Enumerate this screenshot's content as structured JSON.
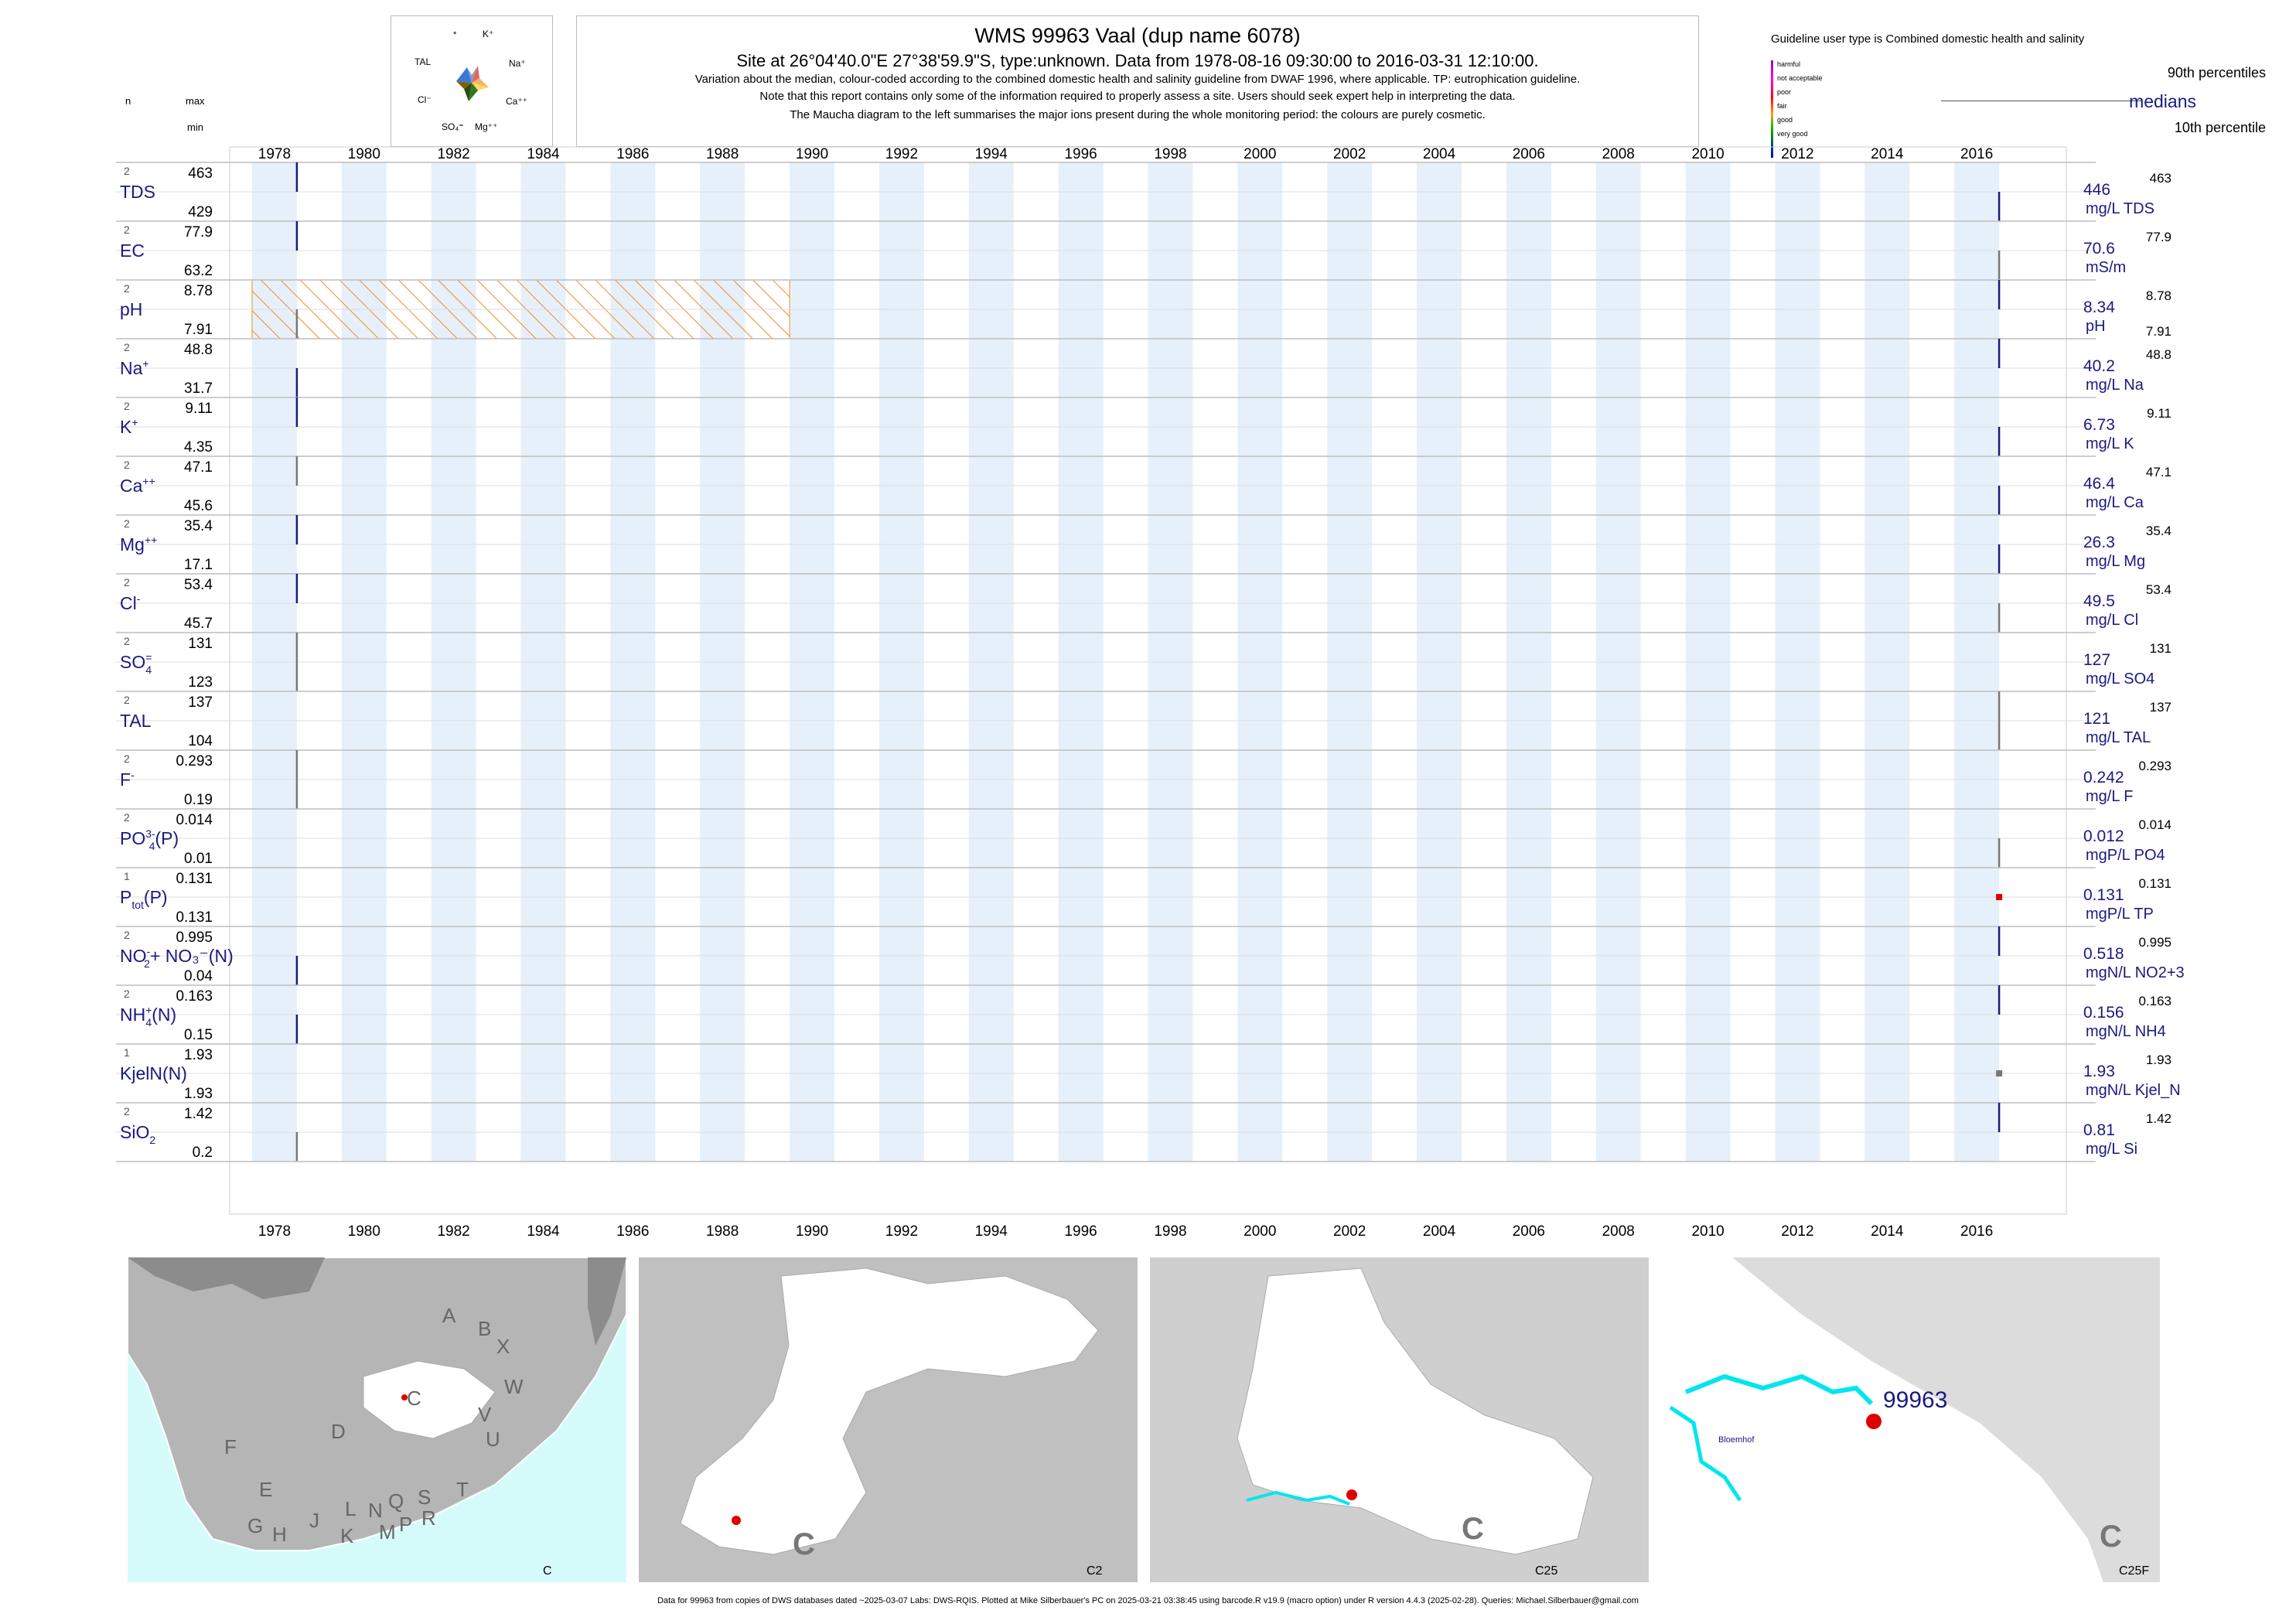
{
  "header": {
    "title": "WMS 99963  Vaal (dup name 6078)",
    "subtitle": "Site at 26°04'40.0\"E 27°38'59.9\"S, type:unknown.  Data from 1978-08-16 09:30:00 to 2016-03-31 12:10:00.",
    "note1": "Variation about the median,  colour-coded according to the combined domestic health and salinity guideline from DWAF 1996, where applicable. TP: eutrophication guideline.",
    "note2": "Note that this report contains only some of the information required to properly assess a site. Users should seek expert help in interpreting the data.",
    "note3": "The Maucha diagram to the left summarises the major ions present during the whole monitoring period: the colours are purely cosmetic."
  },
  "maucha": {
    "labels": [
      "*",
      "K⁺",
      "Na⁺",
      "Ca⁺⁺",
      "Mg⁺⁺",
      "SO₄⁼",
      "Cl⁻",
      "TAL"
    ]
  },
  "legend": {
    "guideline_title": "Guideline user type is Combined domestic health and salinity",
    "classes": [
      {
        "label": "harmful",
        "color": "#8b1a8b"
      },
      {
        "label": "not acceptable",
        "color": "#ff00ff"
      },
      {
        "label": "poor",
        "color": "#ff0000"
      },
      {
        "label": "fair",
        "color": "#ffa500"
      },
      {
        "label": "good",
        "color": "#00aa00"
      },
      {
        "label": "very good",
        "color": "#0000cc"
      }
    ],
    "p90": "90th percentiles",
    "medians": "medians",
    "p10": "10th percentile"
  },
  "left_header": {
    "n": "n",
    "max": "max",
    "min": "min"
  },
  "chart_data": {
    "type": "range-bar",
    "x_ticks": [
      "1978",
      "1980",
      "1982",
      "1984",
      "1986",
      "1988",
      "1990",
      "1992",
      "1994",
      "1996",
      "1998",
      "2000",
      "2002",
      "2004",
      "2006",
      "2008",
      "2010",
      "2012",
      "2014",
      "2016"
    ],
    "xlim": [
      1977,
      2018
    ],
    "pH_hatch": {
      "from": 1977.5,
      "to": 1989.5,
      "color": "#f28c28"
    },
    "colors": {
      "vertical": "#1a1a80",
      "grey": "#777777",
      "red": "#e00000",
      "band": "#e6f0fa"
    },
    "variables": [
      {
        "label": "TDS",
        "sup": "",
        "sub": "",
        "n": "2",
        "max": "463",
        "min": "429",
        "median": "446",
        "unit": "mg/L TDS",
        "rmax": "463",
        "rmin": "",
        "segments": [
          {
            "year": 1978.5,
            "top": 1,
            "bot": 0.5,
            "c": "vertical"
          },
          {
            "year": 2016.5,
            "top": 0.5,
            "bot": 0,
            "c": "vertical"
          }
        ]
      },
      {
        "label": "EC",
        "sup": "",
        "sub": "",
        "n": "2",
        "max": "77.9",
        "min": "63.2",
        "median": "70.6",
        "unit": "mS/m",
        "rmax": "77.9",
        "rmin": "",
        "segments": [
          {
            "year": 1978.5,
            "top": 1,
            "bot": 0.5,
            "c": "vertical"
          },
          {
            "year": 2016.5,
            "top": 0.5,
            "bot": 0,
            "c": "grey"
          }
        ]
      },
      {
        "label": "pH",
        "sup": "",
        "sub": "",
        "n": "2",
        "max": "8.78",
        "min": "7.91",
        "median": "8.34",
        "unit": "pH",
        "rmax": "8.78",
        "rmin": "7.91",
        "segments": [
          {
            "year": 1978.5,
            "top": 0.5,
            "bot": 0,
            "c": "grey"
          },
          {
            "year": 2016.5,
            "top": 1,
            "bot": 0.5,
            "c": "vertical"
          }
        ]
      },
      {
        "label": "Na",
        "sup": "+",
        "sub": "",
        "n": "2",
        "max": "48.8",
        "min": "31.7",
        "median": "40.2",
        "unit": "mg/L Na",
        "rmax": "48.8",
        "rmin": "",
        "segments": [
          {
            "year": 1978.5,
            "top": 0.5,
            "bot": 0,
            "c": "vertical"
          },
          {
            "year": 2016.5,
            "top": 1,
            "bot": 0.5,
            "c": "vertical"
          }
        ]
      },
      {
        "label": "K",
        "sup": "+",
        "sub": "",
        "n": "2",
        "max": "9.11",
        "min": "4.35",
        "median": "6.73",
        "unit": "mg/L K",
        "rmax": "9.11",
        "rmin": "",
        "segments": [
          {
            "year": 1978.5,
            "top": 1,
            "bot": 0.5,
            "c": "vertical"
          },
          {
            "year": 2016.5,
            "top": 0.5,
            "bot": 0,
            "c": "vertical"
          }
        ]
      },
      {
        "label": "Ca",
        "sup": "++",
        "sub": "",
        "n": "2",
        "max": "47.1",
        "min": "45.6",
        "median": "46.4",
        "unit": "mg/L Ca",
        "rmax": "47.1",
        "rmin": "",
        "segments": [
          {
            "year": 1978.5,
            "top": 1,
            "bot": 0.5,
            "c": "grey"
          },
          {
            "year": 2016.5,
            "top": 0.5,
            "bot": 0,
            "c": "vertical"
          }
        ]
      },
      {
        "label": "Mg",
        "sup": "++",
        "sub": "",
        "n": "2",
        "max": "35.4",
        "min": "17.1",
        "median": "26.3",
        "unit": "mg/L Mg",
        "rmax": "35.4",
        "rmin": "",
        "segments": [
          {
            "year": 1978.5,
            "top": 1,
            "bot": 0.5,
            "c": "vertical"
          },
          {
            "year": 2016.5,
            "top": 0.5,
            "bot": 0,
            "c": "vertical"
          }
        ]
      },
      {
        "label": "Cl",
        "sup": "-",
        "sub": "",
        "n": "2",
        "max": "53.4",
        "min": "45.7",
        "median": "49.5",
        "unit": "mg/L Cl",
        "rmax": "53.4",
        "rmin": "",
        "segments": [
          {
            "year": 1978.5,
            "top": 1,
            "bot": 0.5,
            "c": "vertical"
          },
          {
            "year": 2016.5,
            "top": 0.5,
            "bot": 0,
            "c": "grey"
          }
        ]
      },
      {
        "label": "SO",
        "sup": "=",
        "sub": "4",
        "n": "2",
        "max": "131",
        "min": "123",
        "median": "127",
        "unit": "mg/L SO4",
        "rmax": "131",
        "rmin": "",
        "segments": [
          {
            "year": 1978.5,
            "top": 1,
            "bot": 0,
            "c": "grey"
          }
        ]
      },
      {
        "label": "TAL",
        "sup": "",
        "sub": "",
        "n": "2",
        "max": "137",
        "min": "104",
        "median": "121",
        "unit": "mg/L TAL",
        "rmax": "137",
        "rmin": "",
        "segments": [
          {
            "year": 2016.5,
            "top": 1,
            "bot": 0,
            "c": "grey"
          }
        ]
      },
      {
        "label": "F",
        "sup": "-",
        "sub": "",
        "n": "2",
        "max": "0.293",
        "min": "0.19",
        "median": "0.242",
        "unit": "mg/L F",
        "rmax": "0.293",
        "rmin": "",
        "segments": [
          {
            "year": 1978.5,
            "top": 1,
            "bot": 0,
            "c": "grey"
          }
        ]
      },
      {
        "label": "PO",
        "sup": "3-",
        "sub": "4",
        "suffix": "(P)",
        "n": "2",
        "max": "0.014",
        "min": "0.01",
        "median": "0.012",
        "unit": "mgP/L PO4",
        "rmax": "0.014",
        "rmin": "",
        "segments": [
          {
            "year": 2016.5,
            "top": 0.5,
            "bot": 0,
            "c": "grey"
          }
        ]
      },
      {
        "label": "P",
        "sup": "",
        "sub": "tot",
        "suffix": "(P)",
        "n": "1",
        "max": "0.131",
        "min": "0.131",
        "median": "0.131",
        "unit": "mgP/L TP",
        "rmax": "0.131",
        "rmin": "",
        "segments": [],
        "points": [
          {
            "year": 2016.5,
            "pos": 0.5,
            "c": "red"
          }
        ]
      },
      {
        "label": "NO",
        "sup": "-",
        "sub": "2",
        "suffix": "+ NO₃⁻(N)",
        "n": "2",
        "max": "0.995",
        "min": "0.04",
        "median": "0.518",
        "unit": "mgN/L NO2+3",
        "rmax": "0.995",
        "rmin": "",
        "segments": [
          {
            "year": 1978.5,
            "top": 0.5,
            "bot": 0,
            "c": "vertical"
          },
          {
            "year": 2016.5,
            "top": 1,
            "bot": 0.5,
            "c": "vertical"
          }
        ]
      },
      {
        "label": "NH",
        "sup": "+",
        "sub": "4",
        "suffix": "(N)",
        "n": "2",
        "max": "0.163",
        "min": "0.15",
        "median": "0.156",
        "unit": "mgN/L NH4",
        "rmax": "0.163",
        "rmin": "",
        "segments": [
          {
            "year": 1978.5,
            "top": 0.5,
            "bot": 0,
            "c": "vertical"
          },
          {
            "year": 2016.5,
            "top": 1,
            "bot": 0.5,
            "c": "vertical"
          }
        ]
      },
      {
        "label": "KjelN(N)",
        "sup": "",
        "sub": "",
        "n": "1",
        "max": "1.93",
        "min": "1.93",
        "median": "1.93",
        "unit": "mgN/L Kjel_N",
        "rmax": "1.93",
        "rmin": "",
        "segments": [],
        "points": [
          {
            "year": 2016.5,
            "pos": 0.5,
            "c": "grey"
          }
        ]
      },
      {
        "label": "SiO",
        "sup": "",
        "sub": "2",
        "n": "2",
        "max": "1.42",
        "min": "0.2",
        "median": "0.81",
        "unit": "mg/L Si",
        "rmax": "1.42",
        "rmin": "",
        "segments": [
          {
            "year": 1978.5,
            "top": 0.5,
            "bot": 0,
            "c": "grey"
          },
          {
            "year": 2016.5,
            "top": 1,
            "bot": 0.5,
            "c": "vertical"
          }
        ]
      }
    ]
  },
  "maps": [
    {
      "caption": "C",
      "letters": [
        "A",
        "B",
        "X",
        "W",
        "V",
        "U",
        "T",
        "C",
        "D",
        "F",
        "E",
        "G",
        "H",
        "J",
        "K",
        "L",
        "M",
        "N",
        "P",
        "Q",
        "R",
        "S"
      ]
    },
    {
      "caption": "C2",
      "region_letter": "C"
    },
    {
      "caption": "C25",
      "region_letter": "C"
    },
    {
      "caption": "C25F",
      "region_letter": "C",
      "site_label": "99963",
      "place": "Bloemhof"
    }
  ],
  "footer": "Data for 99963 from copies of DWS databases dated ~2025-03-07 Labs: DWS-RQIS. Plotted at Mike Silberbauer's PC on 2025-03-21 03:38:45 using barcode.R v19.9 (macro option) under R version 4.4.3 (2025-02-28). Queries: Michael.Silberbauer@gmail.com"
}
